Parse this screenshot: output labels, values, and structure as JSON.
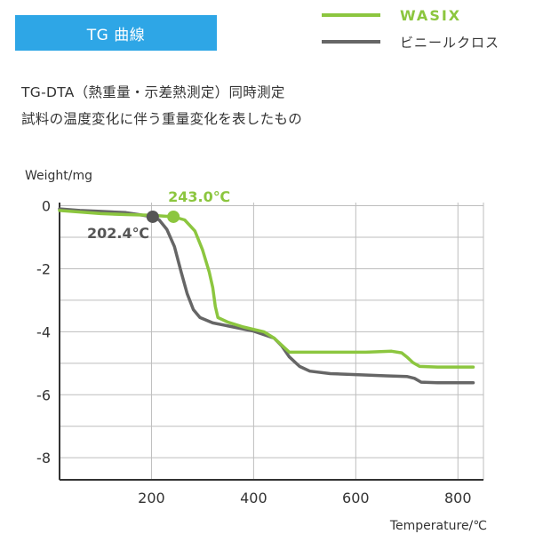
{
  "header": {
    "tag_label": "TG 曲線",
    "description_line1": "TG-DTA（熱重量・示差熱測定）同時測定",
    "description_line2": "試料の温度変化に伴う重量変化を表したもの"
  },
  "legend": [
    {
      "name": "WASIX",
      "color": "#8cc63f"
    },
    {
      "name": "ビニールクロス",
      "color": "#666666"
    }
  ],
  "chart_data": {
    "type": "line",
    "title": "",
    "xlabel": "Temperature/℃",
    "ylabel": "Weight/mg",
    "xlim": [
      20,
      850
    ],
    "ylim": [
      -8.7,
      0.1
    ],
    "xticks": [
      200,
      400,
      600,
      800
    ],
    "yticks": [
      0,
      -2,
      -4,
      -6,
      -8
    ],
    "grid": true,
    "legend_position": "top-right",
    "series": [
      {
        "name": "WASIX",
        "color": "#8cc63f",
        "points": [
          [
            20,
            -0.15
          ],
          [
            60,
            -0.2
          ],
          [
            100,
            -0.25
          ],
          [
            150,
            -0.28
          ],
          [
            200,
            -0.3
          ],
          [
            243,
            -0.35
          ],
          [
            265,
            -0.45
          ],
          [
            285,
            -0.8
          ],
          [
            300,
            -1.4
          ],
          [
            313,
            -2.1
          ],
          [
            320,
            -2.6
          ],
          [
            325,
            -3.2
          ],
          [
            330,
            -3.55
          ],
          [
            350,
            -3.7
          ],
          [
            380,
            -3.85
          ],
          [
            420,
            -4.0
          ],
          [
            440,
            -4.2
          ],
          [
            460,
            -4.5
          ],
          [
            470,
            -4.65
          ],
          [
            500,
            -4.65
          ],
          [
            560,
            -4.65
          ],
          [
            620,
            -4.65
          ],
          [
            670,
            -4.62
          ],
          [
            690,
            -4.67
          ],
          [
            700,
            -4.8
          ],
          [
            712,
            -4.98
          ],
          [
            725,
            -5.1
          ],
          [
            760,
            -5.12
          ],
          [
            830,
            -5.12
          ]
        ]
      },
      {
        "name": "ビニールクロス",
        "color": "#666666",
        "points": [
          [
            20,
            -0.1
          ],
          [
            60,
            -0.15
          ],
          [
            100,
            -0.18
          ],
          [
            150,
            -0.22
          ],
          [
            175,
            -0.28
          ],
          [
            202.4,
            -0.35
          ],
          [
            215,
            -0.45
          ],
          [
            230,
            -0.75
          ],
          [
            245,
            -1.3
          ],
          [
            258,
            -2.1
          ],
          [
            270,
            -2.8
          ],
          [
            282,
            -3.3
          ],
          [
            295,
            -3.55
          ],
          [
            320,
            -3.72
          ],
          [
            360,
            -3.85
          ],
          [
            400,
            -3.98
          ],
          [
            440,
            -4.2
          ],
          [
            455,
            -4.45
          ],
          [
            470,
            -4.8
          ],
          [
            490,
            -5.1
          ],
          [
            510,
            -5.25
          ],
          [
            550,
            -5.33
          ],
          [
            600,
            -5.36
          ],
          [
            660,
            -5.4
          ],
          [
            700,
            -5.42
          ],
          [
            715,
            -5.48
          ],
          [
            728,
            -5.6
          ],
          [
            760,
            -5.62
          ],
          [
            830,
            -5.62
          ]
        ]
      }
    ],
    "annotations": [
      {
        "text": "243.0℃",
        "x": 243,
        "y": -0.35,
        "color": "#8cc63f"
      },
      {
        "text": "202.4℃",
        "x": 202.4,
        "y": -0.35,
        "color": "#555555"
      }
    ]
  }
}
